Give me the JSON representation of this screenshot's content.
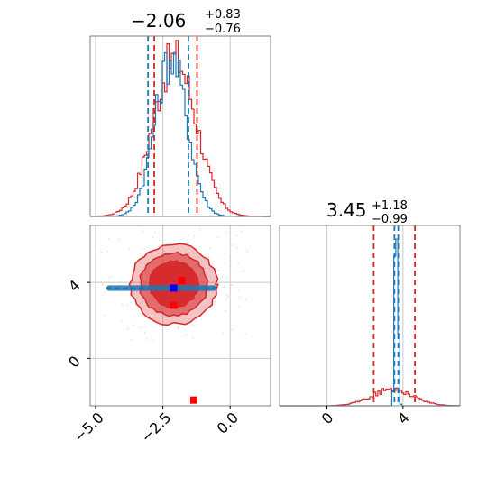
{
  "chart_data": [
    {
      "type": "histogram",
      "panel": "top-left",
      "title": {
        "median": "−2.06",
        "plus": "+0.83",
        "minus": "−0.76"
      },
      "xlim": [
        -5.2,
        1.5
      ],
      "grid": true,
      "series": [
        {
          "color": "#d62728",
          "center": -2.06,
          "sigma": 0.8,
          "quantiles": [
            -2.82,
            -1.23
          ]
        },
        {
          "color": "#1f77b4",
          "center": -2.2,
          "sigma": 0.6,
          "quantiles": [
            -3.05,
            -1.55
          ]
        }
      ]
    },
    {
      "type": "contour",
      "panel": "bottom-left",
      "xlim": [
        -5.2,
        1.5
      ],
      "ylim": [
        -2.5,
        7
      ],
      "xticks": [
        "−5.0",
        "−2.5",
        "0.0"
      ],
      "xtick_values": [
        -5.0,
        -2.5,
        0.0
      ],
      "yticks": [
        "4",
        "0"
      ],
      "ytick_values": [
        4,
        0
      ],
      "grid": true,
      "red_contours": {
        "center": [
          -2.1,
          3.9
        ],
        "color": "#d62728",
        "level_radii": [
          [
            1.6,
            2.1
          ],
          [
            1.25,
            1.65
          ],
          [
            0.9,
            1.2
          ]
        ]
      },
      "blue_band": {
        "x_range": [
          -4.6,
          -0.5
        ],
        "y_range": [
          3.55,
          3.85
        ],
        "color": "#1f77b4"
      },
      "markers": [
        {
          "x": -2.1,
          "y": 3.7,
          "color": "#0000ff"
        },
        {
          "x": -1.8,
          "y": 4.1,
          "color": "#ff0000"
        },
        {
          "x": -2.1,
          "y": 2.8,
          "color": "#ff0000"
        },
        {
          "x": -1.35,
          "y": -2.2,
          "color": "#ff0000"
        }
      ]
    },
    {
      "type": "histogram",
      "panel": "bottom-right",
      "title": {
        "median": "3.45",
        "plus": "+1.18",
        "minus": "−0.99"
      },
      "xlim": [
        -2.5,
        7
      ],
      "xticks": [
        "0",
        "4"
      ],
      "xtick_values": [
        0,
        4
      ],
      "grid": true,
      "series": [
        {
          "color": "#d62728",
          "center": 3.45,
          "sigma": 1.1,
          "quantiles": [
            2.46,
            4.63
          ]
        },
        {
          "color": "#1f77b4",
          "center": 3.65,
          "sigma": 0.06,
          "quantiles": [
            3.55,
            3.75
          ]
        }
      ]
    }
  ]
}
